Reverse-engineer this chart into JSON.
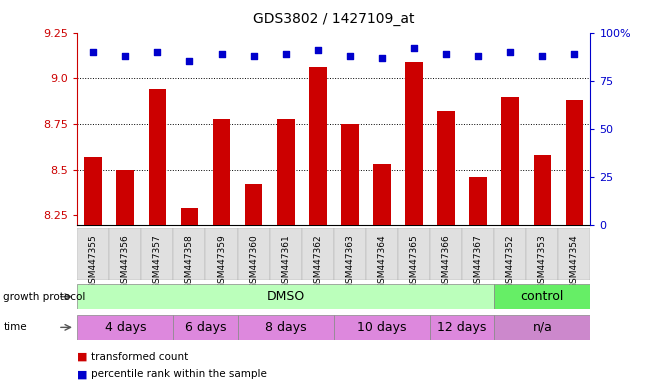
{
  "title": "GDS3802 / 1427109_at",
  "samples": [
    "GSM447355",
    "GSM447356",
    "GSM447357",
    "GSM447358",
    "GSM447359",
    "GSM447360",
    "GSM447361",
    "GSM447362",
    "GSM447363",
    "GSM447364",
    "GSM447365",
    "GSM447366",
    "GSM447367",
    "GSM447352",
    "GSM447353",
    "GSM447354"
  ],
  "bar_values": [
    8.57,
    8.5,
    8.94,
    8.29,
    8.78,
    8.42,
    8.78,
    9.06,
    8.75,
    8.53,
    9.09,
    8.82,
    8.46,
    8.9,
    8.58,
    8.88
  ],
  "percentile_values": [
    90,
    88,
    90,
    85,
    89,
    88,
    89,
    91,
    88,
    87,
    92,
    89,
    88,
    90,
    88,
    89
  ],
  "bar_color": "#cc0000",
  "dot_color": "#0000cc",
  "ylim_left": [
    8.2,
    9.25
  ],
  "ylim_right": [
    0,
    100
  ],
  "yticks_left": [
    8.25,
    8.5,
    8.75,
    9.0,
    9.25
  ],
  "yticks_right": [
    0,
    25,
    50,
    75,
    100
  ],
  "grid_values": [
    8.5,
    8.75,
    9.0
  ],
  "growth_protocol_label": "growth protocol",
  "time_label": "time",
  "legend_red_label": "transformed count",
  "legend_blue_label": "percentile rank within the sample",
  "bar_width": 0.55,
  "plot_bg": "#ffffff",
  "tick_label_color": "#cc0000",
  "right_tick_color": "#0000cc",
  "dmso_color": "#bbffbb",
  "control_color": "#66ee66",
  "time_color": "#dd88dd",
  "na_color": "#cc88cc",
  "sample_bg": "#e0e0e0"
}
